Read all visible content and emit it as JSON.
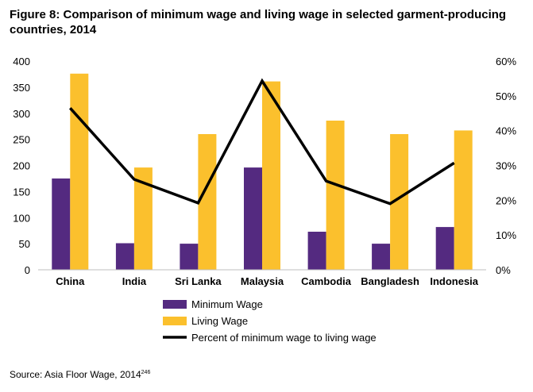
{
  "chart_data": {
    "type": "bar",
    "title": "Figure 8: Comparison of minimum wage and living wage in selected garment-producing countries, 2014",
    "categories": [
      "China",
      "India",
      "Sri Lanka",
      "Malaysia",
      "Cambodia",
      "Bangladesh",
      "Indonesia"
    ],
    "series": [
      {
        "name": "Minimum Wage",
        "type": "bar",
        "axis": "left",
        "color": "#542a80",
        "values": [
          175,
          51,
          50,
          196,
          73,
          50,
          82
        ]
      },
      {
        "name": "Living Wage",
        "type": "bar",
        "axis": "left",
        "color": "#fbc02d",
        "values": [
          376,
          196,
          260,
          361,
          286,
          260,
          267
        ]
      },
      {
        "name": "Percent of minimum wage to living wage",
        "type": "line",
        "axis": "right",
        "color": "#000000",
        "values": [
          0.465,
          0.26,
          0.192,
          0.543,
          0.255,
          0.19,
          0.307
        ]
      }
    ],
    "ylim": [
      0,
      400
    ],
    "yticks": [
      "0",
      "50",
      "100",
      "150",
      "200",
      "250",
      "300",
      "350",
      "400"
    ],
    "y2lim": [
      0,
      0.6
    ],
    "y2ticks": [
      "0%",
      "10%",
      "20%",
      "30%",
      "40%",
      "50%",
      "60%"
    ],
    "legend_position": "bottom",
    "grid": false
  },
  "source": {
    "text": "Source: Asia Floor Wage, 2014",
    "ref": "246"
  }
}
